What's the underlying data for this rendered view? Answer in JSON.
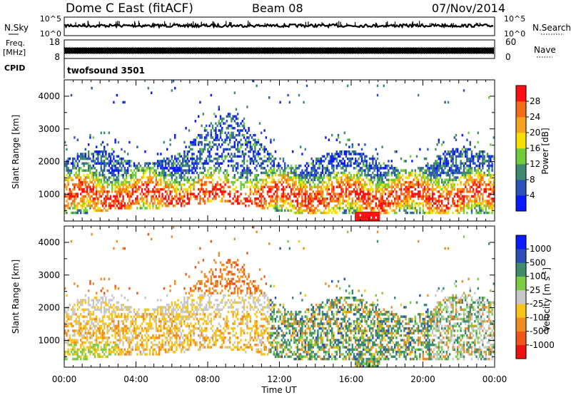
{
  "header": {
    "station": "Dome C East (fitACF)",
    "beam": "Beam 08",
    "date": "07/Nov/2014"
  },
  "summary_panels": {
    "nsky": {
      "label": "N.Sky",
      "ticks": [
        "10^5",
        "10^0"
      ]
    },
    "nsearch": {
      "label": "N.Search",
      "ticks": [
        "10^5",
        "10^0"
      ]
    },
    "freq": {
      "label_top": "Freq.",
      "label_unit": "[MHz]",
      "ticks": [
        "18",
        "8"
      ]
    },
    "nave": {
      "label": "Nave",
      "ticks": [
        "60",
        "0"
      ]
    },
    "cpid": {
      "label": "CPID",
      "value": "twofsound 3501"
    }
  },
  "colors": {
    "power": [
      "#0a1aff",
      "#2c52b8",
      "#3f8a6e",
      "#6fcd39",
      "#f7e000",
      "#f5a21c",
      "#f46a17",
      "#ff1010"
    ],
    "velocity": [
      "#ee1111",
      "#f0541a",
      "#f08c22",
      "#f7c419",
      "#c8c8c8",
      "#7ccc46",
      "#3e8c6a",
      "#2c4fb5",
      "#0a1aff"
    ]
  },
  "chart_data": [
    {
      "type": "heatmap",
      "name": "power",
      "ylabel": "Slant Range [km]",
      "yticks": [
        "1000",
        "2000",
        "3000",
        "4000"
      ],
      "colorbar_label": "Power [dB]",
      "colorbar_ticks": [
        "4",
        "8",
        "12",
        "16",
        "20",
        "24",
        "28"
      ],
      "ylim": [
        180,
        4500
      ]
    },
    {
      "type": "heatmap",
      "name": "velocity",
      "ylabel": "Slant Range [km]",
      "yticks": [
        "1000",
        "2000",
        "3000",
        "4000"
      ],
      "colorbar_label": "Velocity [m s",
      "colorbar_label_sup": "-1",
      "colorbar_label_end": "]",
      "colorbar_ticks": [
        "-1000",
        "-500",
        "-100",
        "-25",
        "25",
        "100",
        "500",
        "1000"
      ],
      "ylim": [
        180,
        4500
      ]
    }
  ],
  "xaxis": {
    "xlabel": "Time UT",
    "xticks": [
      "00:00",
      "04:00",
      "08:00",
      "12:00",
      "16:00",
      "20:00",
      "00:00"
    ],
    "xlim_hours": [
      0,
      24
    ]
  }
}
